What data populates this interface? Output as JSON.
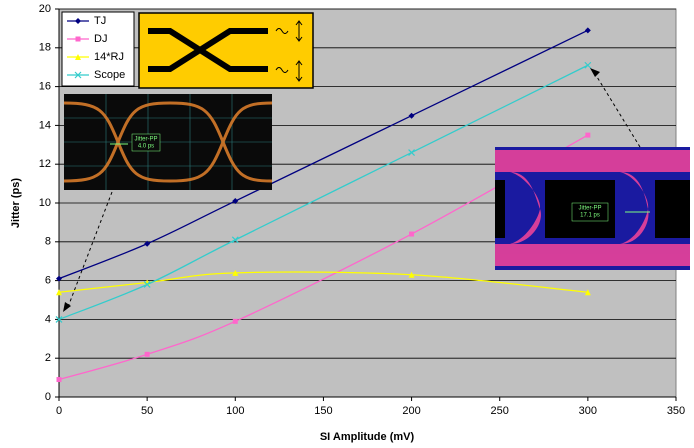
{
  "chart_data": {
    "type": "line",
    "x_label": "SI Amplitude (mV)",
    "y_label": "Jitter (ps)",
    "x": [
      0,
      50,
      100,
      200,
      300
    ],
    "series": [
      {
        "name": "TJ",
        "color": "#000080",
        "marker": "diamond",
        "values": [
          6.1,
          7.9,
          10.1,
          14.5,
          18.9
        ]
      },
      {
        "name": "DJ",
        "color": "#ff66cc",
        "marker": "square",
        "values": [
          0.9,
          2.2,
          3.9,
          8.4,
          13.5
        ]
      },
      {
        "name": "14*RJ",
        "color": "#ffff00",
        "marker": "triangle",
        "values": [
          5.4,
          5.9,
          6.4,
          6.3,
          5.4
        ]
      },
      {
        "name": "Scope",
        "color": "#33cccc",
        "marker": "x",
        "values": [
          4.0,
          5.8,
          8.1,
          12.6,
          17.1
        ]
      }
    ],
    "xlim": [
      0,
      350
    ],
    "xticks": [
      0,
      50,
      100,
      150,
      200,
      250,
      300,
      350
    ],
    "ylim": [
      0,
      20
    ],
    "yticks": [
      0,
      2,
      4,
      6,
      8,
      10,
      12,
      14,
      16,
      18,
      20
    ],
    "grid": true,
    "legend": "upper left",
    "annotations": [
      "Jitter-PP",
      "4.0 ps",
      "Jitter-PP",
      "17.1 ps"
    ]
  }
}
